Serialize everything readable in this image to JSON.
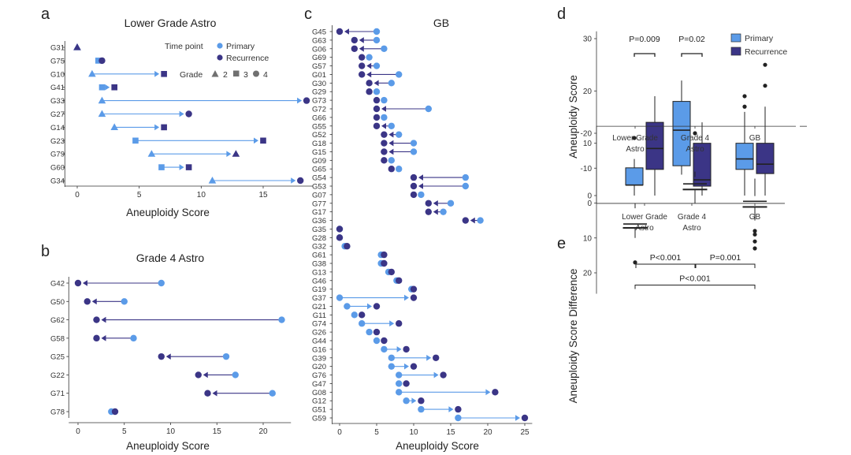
{
  "colors": {
    "primary": "#5b9be8",
    "recurrence": "#3b3586",
    "axis": "#333333"
  },
  "panels": {
    "a": "a",
    "b": "b",
    "c": "c",
    "d": "d",
    "e": "e"
  },
  "chart_data": [
    {
      "id": "a",
      "type": "dumbbell",
      "title": "Lower Grade Astro",
      "xlabel": "Aneuploidy Score",
      "xlim": [
        -1,
        19
      ],
      "xticks": [
        0,
        5,
        10,
        15
      ],
      "legend": {
        "time_title": "Time point",
        "primary": "Primary",
        "recurrence": "Recurrence",
        "grade_title": "Grade",
        "grades": [
          {
            "label": "2",
            "shape": "triangle"
          },
          {
            "label": "3",
            "shape": "square"
          },
          {
            "label": "4",
            "shape": "circle"
          }
        ]
      },
      "rows": [
        {
          "label": "G31",
          "primary": 0,
          "recurrence": 0,
          "pshape": "triangle",
          "rshape": "triangle"
        },
        {
          "label": "G75",
          "primary": 1.7,
          "recurrence": 2,
          "pshape": "square",
          "rshape": "circle"
        },
        {
          "label": "G10",
          "primary": 1.2,
          "recurrence": 7,
          "pshape": "triangle",
          "rshape": "square"
        },
        {
          "label": "G41",
          "primary": 2,
          "recurrence": 3,
          "pshape": "square",
          "rshape": "square"
        },
        {
          "label": "G33",
          "primary": 2,
          "recurrence": 18.5,
          "pshape": "triangle",
          "rshape": "circle"
        },
        {
          "label": "G27",
          "primary": 2,
          "recurrence": 9,
          "pshape": "triangle",
          "rshape": "circle"
        },
        {
          "label": "G14",
          "primary": 3,
          "recurrence": 7,
          "pshape": "triangle",
          "rshape": "square"
        },
        {
          "label": "G23",
          "primary": 4.7,
          "recurrence": 15,
          "pshape": "square",
          "rshape": "square"
        },
        {
          "label": "G79",
          "primary": 6,
          "recurrence": 12.8,
          "pshape": "triangle",
          "rshape": "triangle"
        },
        {
          "label": "G60",
          "primary": 6.8,
          "recurrence": 9,
          "pshape": "square",
          "rshape": "square"
        },
        {
          "label": "G34",
          "primary": 10.9,
          "recurrence": 18,
          "pshape": "triangle",
          "rshape": "circle"
        }
      ]
    },
    {
      "id": "b",
      "type": "dumbbell",
      "title": "Grade 4 Astro",
      "xlabel": "Aneuploidy Score",
      "xlim": [
        -1,
        23
      ],
      "xticks": [
        0,
        5,
        10,
        15,
        20
      ],
      "rows": [
        {
          "label": "G42",
          "primary": 9,
          "recurrence": 0
        },
        {
          "label": "G50",
          "primary": 5,
          "recurrence": 1
        },
        {
          "label": "G62",
          "primary": 22,
          "recurrence": 2
        },
        {
          "label": "G58",
          "primary": 6,
          "recurrence": 2
        },
        {
          "label": "G25",
          "primary": 16,
          "recurrence": 9
        },
        {
          "label": "G22",
          "primary": 17,
          "recurrence": 13
        },
        {
          "label": "G71",
          "primary": 21,
          "recurrence": 14
        },
        {
          "label": "G78",
          "primary": 3.6,
          "recurrence": 4
        }
      ]
    },
    {
      "id": "c",
      "type": "dumbbell",
      "title": "GB",
      "xlabel": "Aneuploidy Score",
      "xlim": [
        -1,
        26
      ],
      "xticks": [
        0,
        5,
        10,
        15,
        20,
        25
      ],
      "rows": [
        {
          "label": "G45",
          "primary": 5,
          "recurrence": 0
        },
        {
          "label": "G63",
          "primary": 5,
          "recurrence": 2
        },
        {
          "label": "G06",
          "primary": 6,
          "recurrence": 2
        },
        {
          "label": "G69",
          "primary": 4,
          "recurrence": 3
        },
        {
          "label": "G57",
          "primary": 5,
          "recurrence": 3
        },
        {
          "label": "G01",
          "primary": 8,
          "recurrence": 3
        },
        {
          "label": "G30",
          "primary": 7,
          "recurrence": 4
        },
        {
          "label": "G29",
          "primary": 5,
          "recurrence": 4
        },
        {
          "label": "G73",
          "primary": 6,
          "recurrence": 5
        },
        {
          "label": "G72",
          "primary": 12,
          "recurrence": 5
        },
        {
          "label": "G66",
          "primary": 6,
          "recurrence": 5
        },
        {
          "label": "G55",
          "primary": 7,
          "recurrence": 5
        },
        {
          "label": "G52",
          "primary": 8,
          "recurrence": 6
        },
        {
          "label": "G18",
          "primary": 10,
          "recurrence": 6
        },
        {
          "label": "G15",
          "primary": 10,
          "recurrence": 6
        },
        {
          "label": "G09",
          "primary": 7,
          "recurrence": 6
        },
        {
          "label": "G65",
          "primary": 8,
          "recurrence": 7
        },
        {
          "label": "G54",
          "primary": 17,
          "recurrence": 10
        },
        {
          "label": "G53",
          "primary": 17,
          "recurrence": 10
        },
        {
          "label": "G07",
          "primary": 11,
          "recurrence": 10
        },
        {
          "label": "G77",
          "primary": 15,
          "recurrence": 12
        },
        {
          "label": "G17",
          "primary": 14,
          "recurrence": 12
        },
        {
          "label": "G36",
          "primary": 19,
          "recurrence": 17
        },
        {
          "label": "G35",
          "primary": 0,
          "recurrence": 0
        },
        {
          "label": "G28",
          "primary": 0,
          "recurrence": 0
        },
        {
          "label": "G32",
          "primary": 0.7,
          "recurrence": 1
        },
        {
          "label": "G61",
          "primary": 5.6,
          "recurrence": 6
        },
        {
          "label": "G38",
          "primary": 5.6,
          "recurrence": 6
        },
        {
          "label": "G13",
          "primary": 6.6,
          "recurrence": 7
        },
        {
          "label": "G46",
          "primary": 7.7,
          "recurrence": 8
        },
        {
          "label": "G19",
          "primary": 9.7,
          "recurrence": 10
        },
        {
          "label": "G37",
          "primary": 0,
          "recurrence": 10
        },
        {
          "label": "G21",
          "primary": 1,
          "recurrence": 5
        },
        {
          "label": "G11",
          "primary": 2,
          "recurrence": 3
        },
        {
          "label": "G74",
          "primary": 3,
          "recurrence": 8
        },
        {
          "label": "G26",
          "primary": 4,
          "recurrence": 5
        },
        {
          "label": "G44",
          "primary": 5,
          "recurrence": 6
        },
        {
          "label": "G16",
          "primary": 6,
          "recurrence": 9
        },
        {
          "label": "G39",
          "primary": 7,
          "recurrence": 13
        },
        {
          "label": "G20",
          "primary": 7,
          "recurrence": 10
        },
        {
          "label": "G76",
          "primary": 8,
          "recurrence": 14
        },
        {
          "label": "G47",
          "primary": 8,
          "recurrence": 9
        },
        {
          "label": "G08",
          "primary": 8,
          "recurrence": 21
        },
        {
          "label": "G12",
          "primary": 9,
          "recurrence": 11
        },
        {
          "label": "G51",
          "primary": 11,
          "recurrence": 16
        },
        {
          "label": "G59",
          "primary": 16,
          "recurrence": 25
        }
      ]
    },
    {
      "id": "d",
      "type": "boxplot",
      "ylabel": "Aneuploidy Score",
      "ylim": [
        -1.5,
        32
      ],
      "yticks": [
        0,
        10,
        20,
        30
      ],
      "categories": [
        "Lower Grade\nAstro",
        "Grade 4\nAstro",
        "GB"
      ],
      "legend": {
        "primary": "Primary",
        "recurrence": "Recurrence"
      },
      "series": [
        {
          "name": "Primary",
          "boxes": [
            {
              "q1": 2,
              "median": 2,
              "q3": 5.3,
              "whisker_low": 0,
              "whisker_high": 7,
              "outliers": [
                11
              ]
            },
            {
              "q1": 5.7,
              "median": 12.5,
              "q3": 18,
              "whisker_low": 4,
              "whisker_high": 22,
              "outliers": []
            },
            {
              "q1": 5,
              "median": 7,
              "q3": 10,
              "whisker_low": 0,
              "whisker_high": 16,
              "outliers": [
                17,
                19
              ]
            }
          ]
        },
        {
          "name": "Recurrence",
          "boxes": [
            {
              "q1": 5,
              "median": 9,
              "q3": 14,
              "whisker_low": 0,
              "whisker_high": 19,
              "outliers": []
            },
            {
              "q1": 1.8,
              "median": 3,
              "q3": 10,
              "whisker_low": 0,
              "whisker_high": 14,
              "outliers": []
            },
            {
              "q1": 4.2,
              "median": 6,
              "q3": 10,
              "whisker_low": 0,
              "whisker_high": 17,
              "outliers": [
                21,
                25
              ]
            }
          ]
        }
      ],
      "annotations": [
        {
          "group": 0,
          "text": "P=0.009"
        },
        {
          "group": 1,
          "text": "P=0.02"
        }
      ]
    },
    {
      "id": "e",
      "type": "boxplot",
      "ylabel": "Aneuploidy Score Difference",
      "ylim": [
        -22,
        26
      ],
      "yticks": [
        -20,
        -10,
        0,
        10,
        20
      ],
      "categories": [
        "Lower Grade\nAstro",
        "Grade 4\nAstro",
        "GB"
      ],
      "boxes": [
        {
          "q1": 1.5,
          "median": 6,
          "q3": 7,
          "whisker_low": 0,
          "whisker_high": 10,
          "outliers": [
            17
          ]
        },
        {
          "q1": -7.5,
          "median": -5.5,
          "q3": -4,
          "whisker_low": -9,
          "whisker_high": 0,
          "outliers": [
            -20
          ]
        },
        {
          "q1": -2,
          "median": -0.5,
          "q3": 1,
          "whisker_low": -7,
          "whisker_high": 5,
          "outliers": [
            13,
            11,
            9,
            8
          ]
        }
      ],
      "comparisons": [
        {
          "from": 0,
          "to": 2,
          "y": 23.5,
          "text": "P<0.001"
        },
        {
          "from": 0,
          "to": 1,
          "y": 17.5,
          "text": "P<0.001"
        },
        {
          "from": 1,
          "to": 2,
          "y": 17.5,
          "text": "P=0.001"
        }
      ]
    }
  ]
}
